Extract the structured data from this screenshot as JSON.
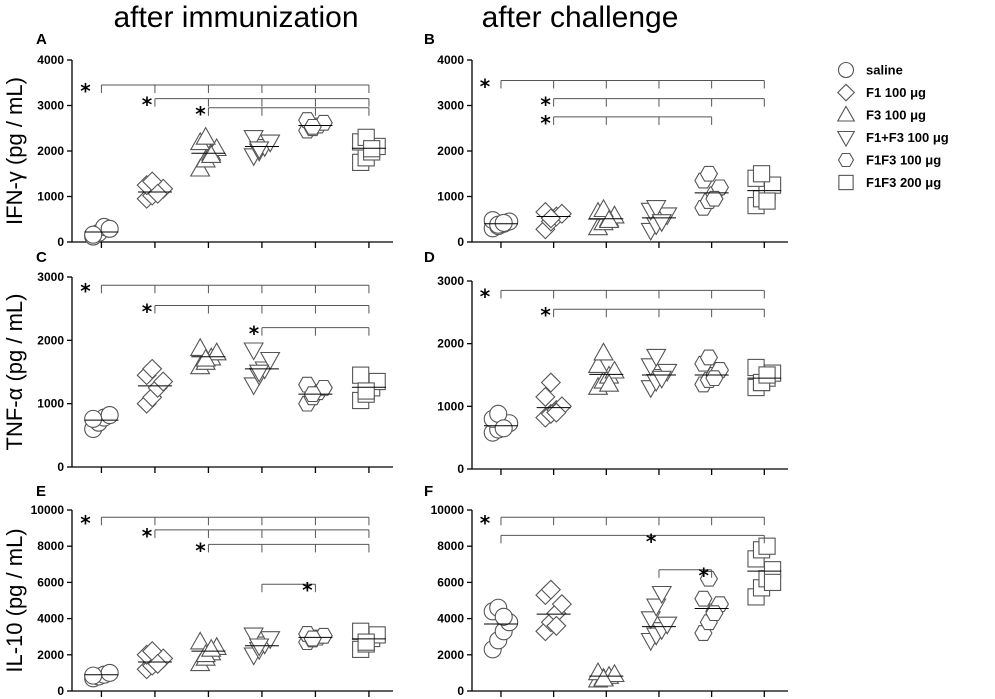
{
  "column_titles": [
    "after immunization",
    "after challenge"
  ],
  "groups": [
    {
      "label": "saline",
      "marker": "circle"
    },
    {
      "label": "F1 100 μg",
      "marker": "diamond"
    },
    {
      "label": "F3 100 μg",
      "marker": "triangle-up"
    },
    {
      "label": "F1+F3 100 μg",
      "marker": "triangle-down"
    },
    {
      "label": "F1F3 100 μg",
      "marker": "hexagon"
    },
    {
      "label": "F1F3 200 μg",
      "marker": "square"
    }
  ],
  "chart_data": [
    {
      "panel": "A",
      "type": "scatter",
      "ylabel": "IFN-γ (pg / mL)",
      "ylim": [
        0,
        4000
      ],
      "yticks": [
        0,
        1000,
        2000,
        3000,
        4000
      ],
      "means": [
        220,
        1100,
        1950,
        2100,
        2560,
        2060
      ],
      "points": [
        [
          120,
          200,
          330,
          290,
          160
        ],
        [
          950,
          1020,
          1100,
          1170,
          1250,
          1330,
          1060
        ],
        [
          1600,
          1800,
          1950,
          2050,
          2180,
          2300,
          1900
        ],
        [
          1900,
          2000,
          2100,
          2200,
          2300,
          2050
        ],
        [
          2450,
          2500,
          2560,
          2620,
          2680,
          2530
        ],
        [
          1750,
          1850,
          1980,
          2100,
          2200,
          2300,
          2050
        ]
      ],
      "significance": [
        {
          "from": 0,
          "to": [
            1,
            2,
            3,
            4,
            5
          ],
          "y": 3450,
          "star": "*"
        },
        {
          "from": 1,
          "to": [
            2,
            3,
            4,
            5
          ],
          "y": 3150,
          "star": "*"
        },
        {
          "from": 2,
          "to": [
            3,
            4,
            5
          ],
          "y": 2950,
          "star": "*"
        }
      ]
    },
    {
      "panel": "B",
      "type": "scatter",
      "ylabel": "",
      "ylim": [
        0,
        4000
      ],
      "yticks": [
        0,
        1000,
        2000,
        3000,
        4000
      ],
      "means": [
        400,
        560,
        510,
        530,
        1080,
        1130
      ],
      "points": [
        [
          300,
          350,
          400,
          450,
          480,
          380,
          420
        ],
        [
          280,
          450,
          560,
          620,
          660,
          520
        ],
        [
          310,
          420,
          500,
          570,
          650,
          710,
          470
        ],
        [
          260,
          380,
          500,
          600,
          700,
          760,
          450
        ],
        [
          750,
          900,
          1050,
          1200,
          1350,
          1500,
          950
        ],
        [
          800,
          950,
          1100,
          1250,
          1400,
          1500,
          900
        ]
      ],
      "significance": [
        {
          "from": 0,
          "to": [
            1,
            2,
            3,
            4,
            5
          ],
          "y": 3550,
          "star": "*"
        },
        {
          "from": 1,
          "to": [
            2,
            3,
            4,
            5
          ],
          "y": 3150,
          "star": "*"
        },
        {
          "from": 1,
          "to": [
            2,
            3,
            4
          ],
          "y": 2750,
          "star": "*"
        }
      ]
    },
    {
      "panel": "C",
      "type": "scatter",
      "ylabel": "TNF-α (pg / mL)",
      "ylim": [
        0,
        3000
      ],
      "yticks": [
        0,
        1000,
        2000,
        3000
      ],
      "means": [
        740,
        1280,
        1740,
        1550,
        1150,
        1260
      ],
      "points": [
        [
          600,
          700,
          780,
          820,
          760
        ],
        [
          1000,
          1100,
          1250,
          1350,
          1450,
          1550
        ],
        [
          1580,
          1650,
          1720,
          1800,
          1870,
          1700
        ],
        [
          1300,
          1450,
          1550,
          1700,
          1850,
          1500
        ],
        [
          1000,
          1100,
          1180,
          1250,
          1300,
          1150
        ],
        [
          1050,
          1150,
          1250,
          1350,
          1450,
          1200
        ]
      ],
      "significance": [
        {
          "from": 0,
          "to": [
            1,
            2,
            3,
            4,
            5
          ],
          "y": 2870,
          "star": "*"
        },
        {
          "from": 1,
          "to": [
            2,
            3,
            4,
            5
          ],
          "y": 2550,
          "star": "*"
        },
        {
          "from": 3,
          "to": [
            4,
            5
          ],
          "y": 2200,
          "star": "*"
        }
      ]
    },
    {
      "panel": "D",
      "type": "scatter",
      "ylabel": "",
      "ylim": [
        0,
        3000
      ],
      "yticks": [
        0,
        1000,
        2000,
        3000
      ],
      "means": [
        690,
        980,
        1510,
        1500,
        1500,
        1450
      ],
      "points": [
        [
          580,
          630,
          680,
          730,
          800,
          880,
          650
        ],
        [
          820,
          880,
          940,
          1000,
          1150,
          1380,
          900
        ],
        [
          1300,
          1400,
          1480,
          1560,
          1650,
          1850,
          1350
        ],
        [
          1300,
          1400,
          1480,
          1560,
          1650,
          1800,
          1450
        ],
        [
          1350,
          1420,
          1500,
          1580,
          1680,
          1780,
          1450
        ],
        [
          1300,
          1380,
          1450,
          1530,
          1620,
          1380,
          1500
        ]
      ],
      "significance": [
        {
          "from": 0,
          "to": [
            1,
            2,
            3,
            4,
            5
          ],
          "y": 2850,
          "star": "*"
        },
        {
          "from": 1,
          "to": [
            2,
            3,
            4,
            5
          ],
          "y": 2550,
          "star": "*"
        }
      ]
    },
    {
      "panel": "E",
      "type": "scatter",
      "ylabel": "IL-10 (pg / mL)",
      "ylim": [
        0,
        10000
      ],
      "yticks": [
        0,
        2000,
        4000,
        6000,
        8000,
        10000
      ],
      "means": [
        900,
        1600,
        2200,
        2500,
        2960,
        2880
      ],
      "points": [
        [
          700,
          800,
          900,
          1000,
          850
        ],
        [
          1200,
          1400,
          1600,
          1800,
          2000,
          2200,
          1500
        ],
        [
          1500,
          1800,
          2100,
          2400,
          2700,
          2000,
          2300
        ],
        [
          2000,
          2300,
          2600,
          2900,
          3100,
          2500
        ],
        [
          2700,
          2850,
          2950,
          3050,
          3150,
          2900
        ],
        [
          2300,
          2600,
          2900,
          3100,
          3300,
          2700
        ]
      ],
      "significance": [
        {
          "from": 0,
          "to": [
            1,
            2,
            3,
            4,
            5
          ],
          "y": 9600,
          "star": "*"
        },
        {
          "from": 1,
          "to": [
            2,
            3,
            4,
            5
          ],
          "y": 8900,
          "star": "*"
        },
        {
          "from": 2,
          "to": [
            3,
            4,
            5
          ],
          "y": 8100,
          "star": "*"
        },
        {
          "from": 3,
          "to": [
            4
          ],
          "y": 5900,
          "star": "*"
        }
      ]
    },
    {
      "panel": "F",
      "type": "scatter",
      "ylabel": "",
      "ylim": [
        0,
        10000
      ],
      "yticks": [
        0,
        2000,
        4000,
        6000,
        8000,
        10000
      ],
      "means": [
        3700,
        4250,
        820,
        3560,
        4560,
        6620
      ],
      "points": [
        [
          2300,
          2800,
          3300,
          3800,
          4400,
          4600,
          4100
        ],
        [
          3300,
          3800,
          4300,
          4800,
          5300,
          5600,
          3600
        ],
        [
          600,
          700,
          800,
          900,
          1000,
          650
        ],
        [
          2800,
          3100,
          3400,
          3700,
          4000,
          4700,
          5400
        ],
        [
          3200,
          3800,
          4400,
          4800,
          5100,
          6200,
          4300
        ],
        [
          5200,
          5700,
          6200,
          6700,
          7300,
          7800,
          8000,
          6000
        ]
      ],
      "significance": [
        {
          "from": 0,
          "to": [
            1,
            2,
            3,
            4,
            5
          ],
          "y": 9600,
          "star": "*"
        },
        {
          "from": 0,
          "to": [
            5
          ],
          "y": 8600,
          "star": "*"
        },
        {
          "from": 3,
          "to": [
            4
          ],
          "y": 6700,
          "star": "*"
        }
      ]
    }
  ]
}
